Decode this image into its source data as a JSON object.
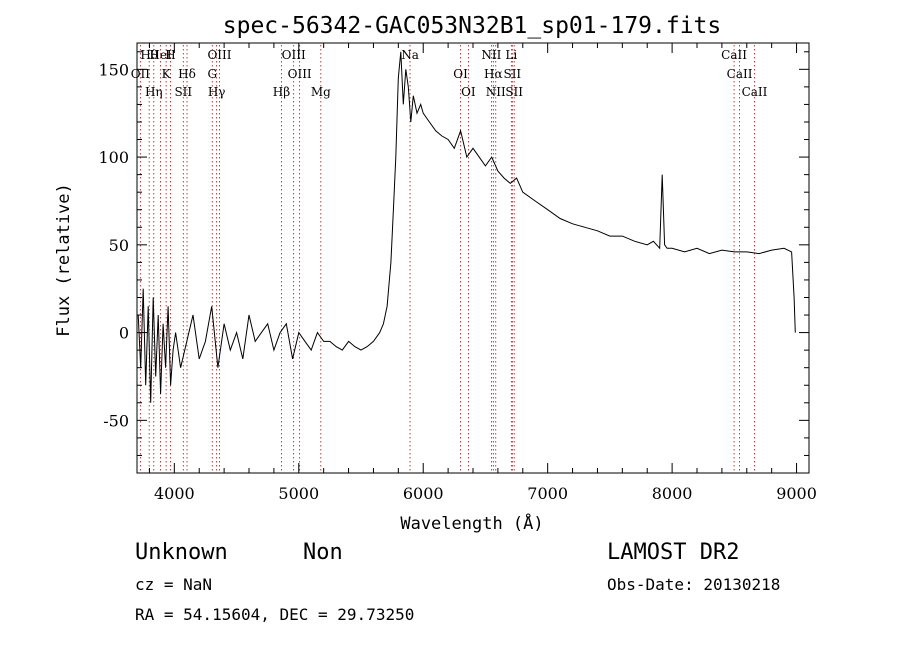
{
  "chart_data": {
    "type": "line",
    "title": "spec-56342-GAC053N32B1_sp01-179.fits",
    "xlabel": "Wavelength (Å)",
    "ylabel": "Flux (relative)",
    "xlim": [
      3700,
      9100
    ],
    "ylim": [
      -80,
      165
    ],
    "xticks": [
      4000,
      5000,
      6000,
      7000,
      8000,
      9000
    ],
    "yticks": [
      -50,
      0,
      50,
      100,
      150
    ],
    "grid": false,
    "line_color": "#000000",
    "marker_line_color": "#a01818",
    "series": [
      {
        "x": [
          3710,
          3730,
          3750,
          3770,
          3790,
          3810,
          3830,
          3850,
          3870,
          3890,
          3910,
          3930,
          3950,
          3970,
          3990,
          4010,
          4050,
          4100,
          4150,
          4200,
          4250,
          4300,
          4350,
          4400,
          4450,
          4500,
          4550,
          4600,
          4650,
          4700,
          4750,
          4800,
          4850,
          4900,
          4950,
          5000,
          5050,
          5100,
          5150,
          5200,
          5250,
          5300,
          5350,
          5400,
          5450,
          5500,
          5550,
          5600,
          5650,
          5680,
          5710,
          5740,
          5760,
          5780,
          5800,
          5820,
          5840,
          5860,
          5880,
          5900,
          5920,
          5950,
          5980,
          6000,
          6050,
          6100,
          6150,
          6200,
          6250,
          6300,
          6350,
          6400,
          6450,
          6500,
          6550,
          6600,
          6650,
          6700,
          6750,
          6800,
          6900,
          7000,
          7100,
          7200,
          7300,
          7400,
          7500,
          7600,
          7700,
          7800,
          7850,
          7900,
          7920,
          7940,
          7960,
          8000,
          8100,
          8200,
          8300,
          8400,
          8500,
          8600,
          8700,
          8800,
          8900,
          8960,
          8980,
          8990
        ],
        "y": [
          10,
          -20,
          25,
          -30,
          15,
          -40,
          20,
          -25,
          10,
          -35,
          5,
          -20,
          15,
          -30,
          -10,
          0,
          -20,
          -5,
          10,
          -15,
          -5,
          15,
          -20,
          5,
          -10,
          0,
          -15,
          10,
          -5,
          0,
          5,
          -10,
          0,
          5,
          -15,
          0,
          -5,
          -10,
          0,
          -5,
          -5,
          -8,
          -10,
          -5,
          -8,
          -10,
          -8,
          -5,
          0,
          5,
          15,
          40,
          70,
          100,
          145,
          160,
          130,
          150,
          140,
          120,
          135,
          125,
          130,
          125,
          120,
          115,
          112,
          110,
          105,
          115,
          100,
          105,
          100,
          95,
          100,
          92,
          88,
          85,
          88,
          80,
          75,
          70,
          65,
          62,
          60,
          58,
          55,
          55,
          52,
          50,
          52,
          48,
          90,
          50,
          48,
          48,
          46,
          48,
          45,
          47,
          46,
          46,
          45,
          47,
          48,
          46,
          20,
          0
        ]
      }
    ],
    "lines": [
      {
        "label": "Hθ",
        "x": 3798
      },
      {
        "label": "OII",
        "x": 3727
      },
      {
        "label": "Hη",
        "x": 3835
      },
      {
        "label": "HeI",
        "x": 3889
      },
      {
        "label": "K",
        "x": 3934
      },
      {
        "label": "SII",
        "x": 4072
      },
      {
        "label": "H",
        "x": 3969
      },
      {
        "label": "Hδ",
        "x": 4102
      },
      {
        "label": "Hγ",
        "x": 4340
      },
      {
        "label": "OIII",
        "x": 4363
      },
      {
        "label": "G",
        "x": 4305
      },
      {
        "label": "Hβ",
        "x": 4861
      },
      {
        "label": "OIII",
        "x": 4959
      },
      {
        "label": "OIII",
        "x": 5007
      },
      {
        "label": "Mg",
        "x": 5177
      },
      {
        "label": "Na",
        "x": 5894
      },
      {
        "label": "OI",
        "x": 6300
      },
      {
        "label": "OI",
        "x": 6363
      },
      {
        "label": "NII",
        "x": 6548
      },
      {
        "label": "Hα",
        "x": 6563
      },
      {
        "label": "NII",
        "x": 6583
      },
      {
        "label": "Li",
        "x": 6708
      },
      {
        "label": "SII",
        "x": 6716
      },
      {
        "label": "SII",
        "x": 6731
      },
      {
        "label": "CaII",
        "x": 8498
      },
      {
        "label": "CaII",
        "x": 8542
      },
      {
        "label": "CaII",
        "x": 8662
      }
    ]
  },
  "info": {
    "class_label": "Unknown",
    "subclass_label": "Non",
    "survey": "LAMOST DR2",
    "cz": "cz = NaN",
    "obs_date": "Obs-Date: 20130218",
    "coords": "RA =  54.15604, DEC =  29.73250"
  }
}
